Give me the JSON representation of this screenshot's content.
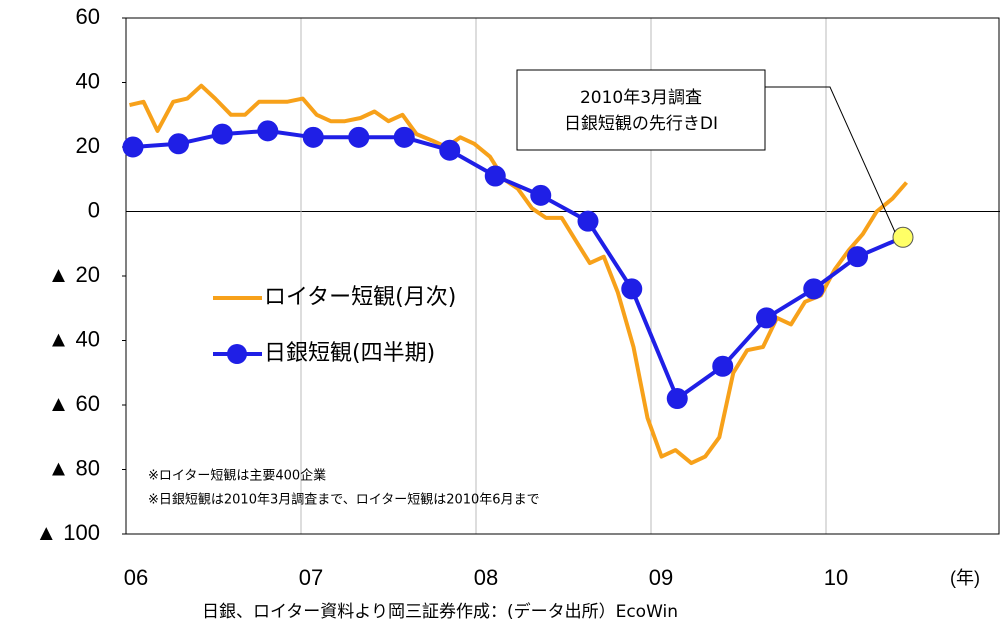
{
  "chart_data": {
    "type": "line",
    "x_label": "(年)",
    "source": "日銀、ロイター資料より岡三証券作成：(データ出所）EcoWin",
    "notes": [
      "※ロイター短観は主要400企業",
      "※日銀短観は2010年3月調査まで、ロイター短観は2010年6月まで"
    ],
    "annotation": [
      "2010年3月調査",
      "日銀短観の先行きDI"
    ],
    "xlim": [
      2006,
      2011
    ],
    "xticks": [
      {
        "value": 2006,
        "label": "06"
      },
      {
        "value": 2007,
        "label": "07"
      },
      {
        "value": 2008,
        "label": "08"
      },
      {
        "value": 2009,
        "label": "09"
      },
      {
        "value": 2010,
        "label": "10"
      }
    ],
    "ylim": [
      -100,
      60
    ],
    "yticks": [
      {
        "value": -100,
        "label": "▲ 100"
      },
      {
        "value": -80,
        "label": "▲ 80"
      },
      {
        "value": -60,
        "label": "▲ 60"
      },
      {
        "value": -40,
        "label": "▲ 40"
      },
      {
        "value": -20,
        "label": "▲ 20"
      },
      0,
      20,
      40,
      60
    ],
    "grid": true,
    "series": [
      {
        "name": "ロイター短観(月次)",
        "color": "#f7a11a",
        "marker": false,
        "x": [
          2006.02,
          2006.1,
          2006.18,
          2006.27,
          2006.35,
          2006.43,
          2006.51,
          2006.6,
          2006.68,
          2006.76,
          2006.84,
          2006.92,
          2007.01,
          2007.09,
          2007.17,
          2007.25,
          2007.34,
          2007.42,
          2007.5,
          2007.58,
          2007.66,
          2007.75,
          2007.83,
          2007.91,
          2007.99,
          2008.08,
          2008.16,
          2008.24,
          2008.32,
          2008.4,
          2008.49,
          2008.57,
          2008.65,
          2008.73,
          2008.81,
          2008.9,
          2008.98,
          2009.06,
          2009.14,
          2009.23,
          2009.31,
          2009.39,
          2009.47,
          2009.55,
          2009.64,
          2009.72,
          2009.8,
          2009.88,
          2009.97,
          2010.05,
          2010.13,
          2010.21,
          2010.29,
          2010.38,
          2010.46
        ],
        "values": [
          33,
          34,
          25,
          34,
          35,
          39,
          35,
          30,
          30,
          34,
          34,
          34,
          35,
          30,
          28,
          28,
          29,
          31,
          28,
          30,
          24,
          22,
          20,
          23,
          21,
          17,
          10,
          7,
          1,
          -2,
          -2,
          -9,
          -16,
          -14,
          -25,
          -42,
          -64,
          -76,
          -74,
          -78,
          -76,
          -70,
          -50,
          -43,
          -42,
          -33,
          -35,
          -28,
          -26,
          -18,
          -12,
          -7,
          0,
          4,
          9
        ]
      },
      {
        "name": "日銀短観(四半期)",
        "color": "#1f1fe6",
        "marker": true,
        "last_marker_color": "#ffff66",
        "x": [
          2006.04,
          2006.3,
          2006.55,
          2006.81,
          2007.07,
          2007.33,
          2007.59,
          2007.85,
          2008.11,
          2008.37,
          2008.64,
          2008.89,
          2009.15,
          2009.41,
          2009.66,
          2009.93,
          2010.18,
          2010.44
        ],
        "values": [
          20,
          21,
          24,
          25,
          23,
          23,
          23,
          19,
          11,
          5,
          -3,
          -24,
          -58,
          -48,
          -33,
          -24,
          -14,
          -8
        ]
      }
    ]
  }
}
